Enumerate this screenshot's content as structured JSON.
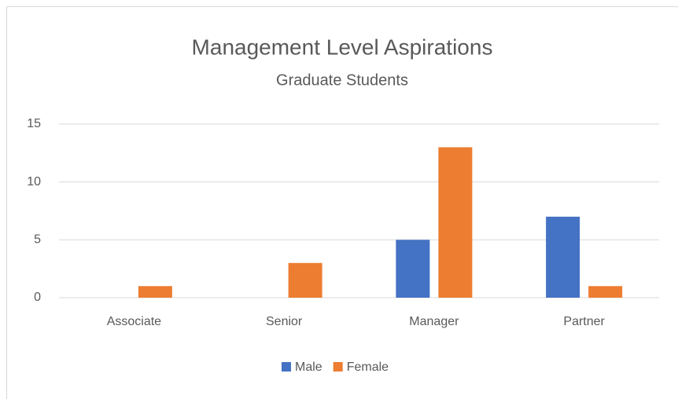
{
  "chart_data": {
    "type": "bar",
    "title": "Management Level Aspirations",
    "subtitle": "Graduate Students",
    "categories": [
      "Associate",
      "Senior",
      "Manager",
      "Partner"
    ],
    "series": [
      {
        "name": "Male",
        "color": "#4472c4",
        "values": [
          0,
          0,
          5,
          7
        ]
      },
      {
        "name": "Female",
        "color": "#ed7d31",
        "values": [
          1,
          3,
          13,
          1
        ]
      }
    ],
    "ylim": [
      0,
      15
    ],
    "yticks": [
      0,
      5,
      10,
      15
    ],
    "grid": true,
    "legend": "bottom"
  }
}
